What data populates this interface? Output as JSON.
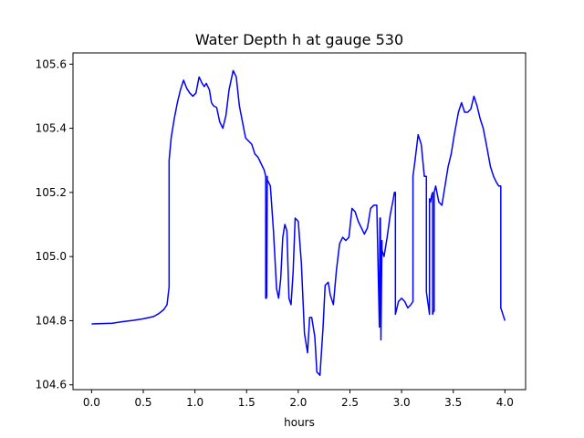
{
  "chart_data": {
    "type": "line",
    "title": "Water Depth h at gauge 530",
    "xlabel": "hours",
    "ylabel": "",
    "xlim": [
      -0.18,
      4.2
    ],
    "ylim": [
      104.585,
      105.635
    ],
    "xticks": [
      0.0,
      0.5,
      1.0,
      1.5,
      2.0,
      2.5,
      3.0,
      3.5,
      4.0
    ],
    "xtick_labels": [
      "0.0",
      "0.5",
      "1.0",
      "1.5",
      "2.0",
      "2.5",
      "3.0",
      "3.5",
      "4.0"
    ],
    "yticks": [
      104.6,
      104.8,
      105.0,
      105.2,
      105.4,
      105.6
    ],
    "ytick_labels": [
      "104.6",
      "104.8",
      "105.0",
      "105.2",
      "105.4",
      "105.6"
    ],
    "grid": false,
    "line_color": "#0000ff",
    "series": [
      {
        "x": [
          0.0,
          0.2,
          0.3,
          0.4,
          0.5,
          0.6,
          0.65,
          0.7,
          0.73,
          0.75,
          0.75,
          0.77,
          0.8,
          0.83,
          0.86,
          0.89,
          0.92,
          0.95,
          0.98,
          1.01,
          1.04,
          1.07,
          1.09,
          1.11,
          1.14,
          1.16,
          1.18,
          1.21,
          1.24,
          1.27,
          1.3,
          1.33,
          1.37,
          1.4,
          1.43,
          1.46,
          1.49,
          1.52,
          1.55,
          1.58,
          1.61,
          1.64,
          1.67,
          1.685,
          1.685,
          1.69,
          1.695,
          1.7,
          1.7,
          1.73,
          1.76,
          1.79,
          1.81,
          1.83,
          1.85,
          1.87,
          1.89,
          1.91,
          1.93,
          1.95,
          1.97,
          2.0,
          2.03,
          2.06,
          2.09,
          2.11,
          2.13,
          2.16,
          2.18,
          2.21,
          2.24,
          2.26,
          2.29,
          2.31,
          2.34,
          2.37,
          2.4,
          2.43,
          2.46,
          2.49,
          2.52,
          2.55,
          2.58,
          2.61,
          2.64,
          2.67,
          2.7,
          2.73,
          2.76,
          2.785,
          2.785,
          2.79,
          2.795,
          2.8,
          2.8,
          2.81,
          2.81,
          2.83,
          2.86,
          2.89,
          2.92,
          2.93,
          2.94,
          2.94,
          2.97,
          3.0,
          3.03,
          3.06,
          3.09,
          3.11,
          3.11,
          3.13,
          3.16,
          3.19,
          3.22,
          3.24,
          3.24,
          3.27,
          3.27,
          3.28,
          3.29,
          3.3,
          3.3,
          3.31,
          3.315,
          3.315,
          3.33,
          3.36,
          3.39,
          3.42,
          3.45,
          3.48,
          3.51,
          3.55,
          3.58,
          3.61,
          3.64,
          3.67,
          3.7,
          3.73,
          3.76,
          3.79,
          3.82,
          3.86,
          3.89,
          3.92,
          3.94,
          3.96,
          3.96,
          4.0
        ],
        "y": [
          104.79,
          104.792,
          104.797,
          104.801,
          104.806,
          104.813,
          104.822,
          104.835,
          104.85,
          104.905,
          105.3,
          105.37,
          105.43,
          105.48,
          105.52,
          105.55,
          105.525,
          105.51,
          105.5,
          105.51,
          105.56,
          105.54,
          105.53,
          105.54,
          105.52,
          105.48,
          105.47,
          105.465,
          105.42,
          105.4,
          105.44,
          105.52,
          105.58,
          105.56,
          105.47,
          105.42,
          105.37,
          105.36,
          105.35,
          105.32,
          105.31,
          105.29,
          105.27,
          105.25,
          104.87,
          104.87,
          104.875,
          105.25,
          105.24,
          105.22,
          105.08,
          104.9,
          104.87,
          104.93,
          105.06,
          105.1,
          105.08,
          104.87,
          104.85,
          104.95,
          105.12,
          105.11,
          104.98,
          104.76,
          104.7,
          104.81,
          104.81,
          104.75,
          104.64,
          104.63,
          104.78,
          104.91,
          104.92,
          104.88,
          104.85,
          104.96,
          105.04,
          105.06,
          105.05,
          105.06,
          105.15,
          105.14,
          105.11,
          105.09,
          105.07,
          105.09,
          105.15,
          105.16,
          105.16,
          104.78,
          104.78,
          105.12,
          105.12,
          104.74,
          104.74,
          105.05,
          105.02,
          105.0,
          105.06,
          105.13,
          105.18,
          105.2,
          105.2,
          104.82,
          104.86,
          104.87,
          104.86,
          104.84,
          104.85,
          104.86,
          105.25,
          105.3,
          105.38,
          105.35,
          105.25,
          105.25,
          104.89,
          104.82,
          105.18,
          105.17,
          105.19,
          105.2,
          104.82,
          104.83,
          104.83,
          105.2,
          105.22,
          105.17,
          105.16,
          105.22,
          105.28,
          105.32,
          105.38,
          105.45,
          105.48,
          105.45,
          105.45,
          105.46,
          105.5,
          105.47,
          105.43,
          105.4,
          105.35,
          105.28,
          105.25,
          105.23,
          105.22,
          105.22,
          104.84,
          104.8
        ]
      }
    ]
  }
}
